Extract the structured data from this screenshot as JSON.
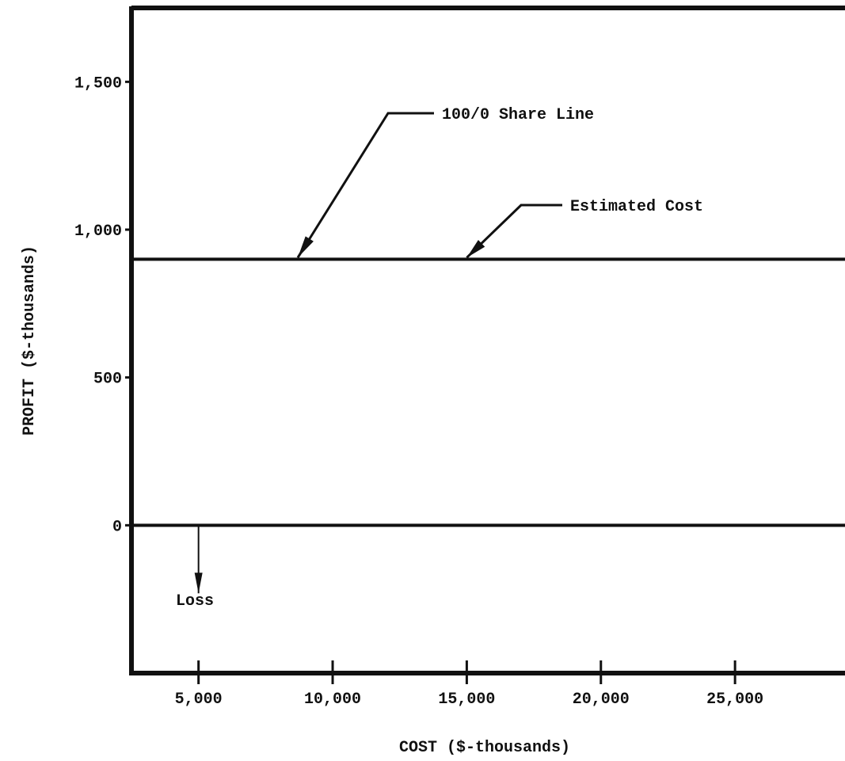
{
  "chart_data": {
    "type": "line",
    "title": "",
    "xlabel": "COST ($-thousands)",
    "ylabel": "PROFIT ($-thousands)",
    "xlim": [
      2500,
      29100
    ],
    "ylim": [
      -500,
      1750
    ],
    "x_ticks": [
      {
        "value": 5000,
        "label": "5,000"
      },
      {
        "value": 10000,
        "label": "10,000"
      },
      {
        "value": 15000,
        "label": "15,000"
      },
      {
        "value": 20000,
        "label": "20,000"
      },
      {
        "value": 25000,
        "label": "25,000"
      }
    ],
    "y_ticks": [
      {
        "value": 1500,
        "label": "1,500"
      },
      {
        "value": 1000,
        "label": "1,000"
      },
      {
        "value": 500,
        "label": "500"
      },
      {
        "value": 0,
        "label": "0"
      }
    ],
    "grid": false,
    "legend": "none",
    "series": [
      {
        "x": [
          2500,
          29100
        ],
        "values": [
          900,
          900
        ]
      }
    ],
    "annotations": [
      {
        "text": "100/0 Share Line",
        "point": [
          8700,
          900
        ]
      },
      {
        "text": "Estimated Cost",
        "point": [
          15000,
          900
        ]
      },
      {
        "text": "Loss",
        "point": [
          5000,
          -230
        ]
      }
    ],
    "colors": {
      "ink": "#111111",
      "background": "#ffffff"
    }
  }
}
